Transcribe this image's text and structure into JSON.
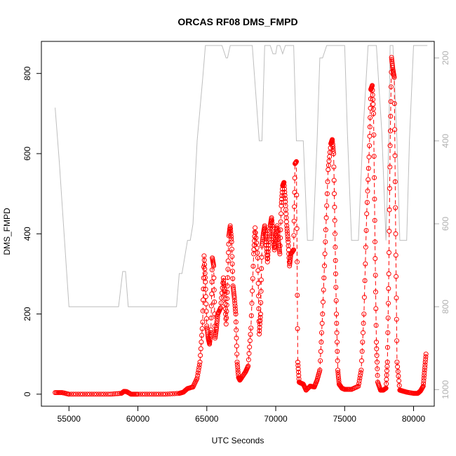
{
  "chart_data": {
    "type": "scatter",
    "title": "ORCAS RF08 DMS_FMPD",
    "xlabel": "UTC Seconds",
    "ylabel": "DMS_FMPD",
    "xlim": [
      53000,
      81500
    ],
    "ylim": [
      -30,
      880
    ],
    "y2lim": [
      1040,
      160
    ],
    "grid": false,
    "legend": "none",
    "x_ticks": [
      55000,
      60000,
      65000,
      70000,
      75000,
      80000
    ],
    "x_tick_labels": [
      "55000",
      "60000",
      "65000",
      "70000",
      "75000",
      "80000"
    ],
    "y_ticks": [
      0,
      200,
      400,
      600,
      800
    ],
    "y_tick_labels": [
      "0",
      "200",
      "400",
      "600",
      "800"
    ],
    "y2_ticks": [
      200,
      400,
      600,
      800,
      1000
    ],
    "y2_tick_labels": [
      "200",
      "400",
      "600",
      "800",
      "1000"
    ],
    "series": [
      {
        "axis": "left",
        "style": "points-and-dashed-line",
        "color": "#ff0000",
        "x": [
          54000,
          54500,
          55000,
          56000,
          57000,
          58000,
          58800,
          59000,
          59200,
          59500,
          60000,
          61000,
          62000,
          63000,
          63300,
          63600,
          64000,
          64300,
          64500,
          64700,
          64800,
          64900,
          65000,
          65100,
          65200,
          65300,
          65400,
          65500,
          65600,
          65700,
          65800,
          66000,
          66200,
          66300,
          66400,
          66500,
          66600,
          66700,
          66800,
          66900,
          67000,
          67100,
          67200,
          67300,
          67400,
          67500,
          67800,
          68000,
          68200,
          68400,
          68500,
          68700,
          68800,
          68900,
          69000,
          69100,
          69200,
          69300,
          69400,
          69500,
          69600,
          69700,
          69800,
          69900,
          70000,
          70100,
          70200,
          70300,
          70400,
          70500,
          70600,
          70700,
          70800,
          70900,
          71000,
          71100,
          71300,
          71400,
          71500,
          71600,
          71700,
          71800,
          72000,
          72200,
          72500,
          72800,
          73000,
          73200,
          73400,
          73600,
          73800,
          74000,
          74100,
          74200,
          74300,
          74400,
          74500,
          74600,
          74800,
          75000,
          75500,
          76000,
          76200,
          76400,
          76600,
          76800,
          76900,
          77000,
          77100,
          77200,
          77300,
          77400,
          77600,
          77800,
          78000,
          78100,
          78200,
          78300,
          78400,
          78500,
          78600,
          78700,
          78800,
          79000,
          79200,
          79500,
          80000,
          80300,
          80500,
          80700,
          80800,
          80900
        ],
        "y": [
          4,
          4,
          0,
          0,
          0,
          0,
          2,
          7,
          6,
          0,
          0,
          0,
          0,
          2,
          5,
          14,
          18,
          40,
          80,
          180,
          345,
          280,
          170,
          140,
          125,
          160,
          340,
          320,
          140,
          165,
          200,
          215,
          290,
          250,
          175,
          270,
          395,
          420,
          380,
          270,
          240,
          200,
          80,
          42,
          35,
          40,
          55,
          70,
          165,
          350,
          415,
          340,
          150,
          200,
          370,
          400,
          420,
          380,
          330,
          380,
          420,
          440,
          400,
          360,
          390,
          420,
          380,
          350,
          470,
          520,
          528,
          480,
          420,
          380,
          320,
          350,
          360,
          575,
          580,
          80,
          30,
          28,
          25,
          10,
          20,
          18,
          35,
          60,
          200,
          380,
          560,
          625,
          635,
          600,
          400,
          200,
          60,
          25,
          15,
          12,
          12,
          20,
          60,
          200,
          450,
          620,
          760,
          770,
          700,
          380,
          130,
          30,
          10,
          10,
          15,
          80,
          300,
          620,
          840,
          810,
          790,
          400,
          80,
          10,
          8,
          5,
          2,
          2,
          8,
          20,
          60,
          100
        ],
        "point_shape": "open-circle"
      },
      {
        "axis": "right",
        "style": "line",
        "color": "#bebebe",
        "x": [
          54000,
          54300,
          54600,
          55000,
          56000,
          57000,
          58000,
          58600,
          58900,
          59100,
          59300,
          59600,
          60000,
          61000,
          62000,
          62800,
          63000,
          63200,
          63300,
          63600,
          63800,
          64000,
          64300,
          64700,
          64900,
          65000,
          65300,
          65500,
          65700,
          66000,
          66100,
          66400,
          66500,
          66700,
          67000,
          67200,
          67500,
          67800,
          67900,
          68000,
          68100,
          68300,
          68800,
          68900,
          69000,
          69200,
          69300,
          69600,
          69800,
          69900,
          70000,
          70100,
          70300,
          70500,
          70700,
          71000,
          71300,
          71500,
          71800,
          72000,
          72300,
          72500,
          72700,
          73000,
          73200,
          73400,
          73700,
          74000,
          74300,
          74700,
          75000,
          75200,
          75500,
          75700,
          76000,
          76300,
          76700,
          77000,
          77100,
          77300,
          77700,
          78000,
          78200,
          78300,
          78400,
          78500,
          78800,
          79000,
          79300,
          79500,
          79700,
          80000,
          80300,
          80600,
          80800,
          81000
        ],
        "y": [
          320,
          450,
          600,
          800,
          800,
          800,
          800,
          800,
          715,
          715,
          800,
          800,
          800,
          800,
          800,
          800,
          720,
          720,
          700,
          640,
          640,
          600,
          400,
          250,
          170,
          170,
          170,
          170,
          170,
          170,
          170,
          200,
          200,
          170,
          170,
          170,
          170,
          170,
          170,
          170,
          170,
          170,
          400,
          400,
          400,
          170,
          170,
          170,
          190,
          190,
          190,
          170,
          170,
          190,
          170,
          170,
          170,
          400,
          400,
          400,
          640,
          640,
          640,
          400,
          200,
          200,
          170,
          170,
          170,
          170,
          170,
          380,
          640,
          640,
          640,
          400,
          170,
          170,
          170,
          170,
          380,
          640,
          400,
          170,
          170,
          170,
          400,
          640,
          640,
          640,
          400,
          170,
          170,
          170,
          170,
          170
        ],
        "point_shape": "none"
      }
    ]
  }
}
